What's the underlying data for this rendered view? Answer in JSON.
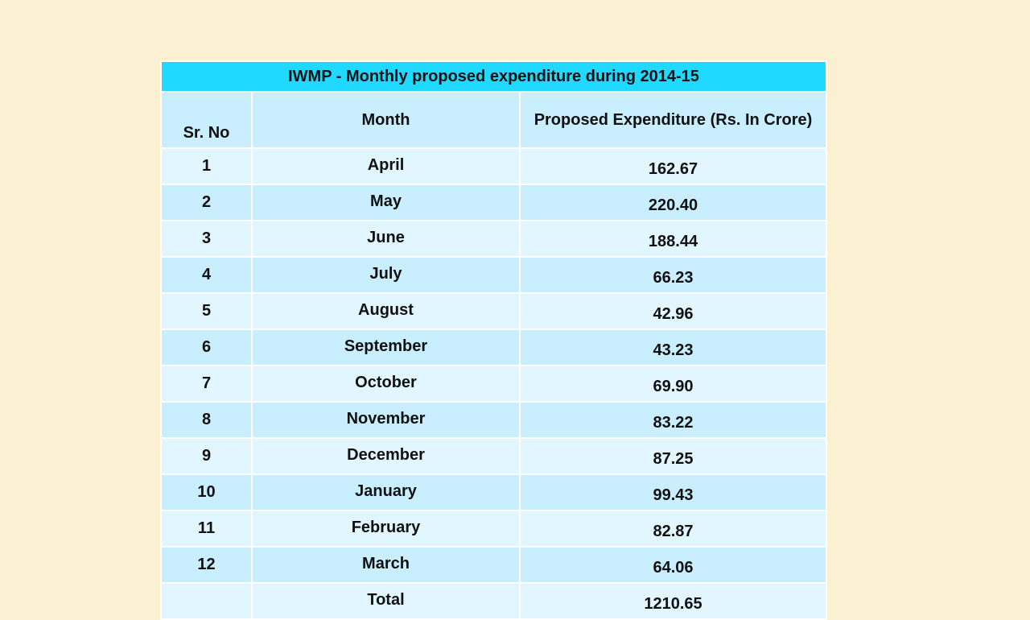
{
  "table": {
    "title": "IWMP - Monthly proposed expenditure during 2014-15",
    "headers": {
      "sr_no": "Sr. No",
      "month": "Month",
      "expenditure": "Proposed Expenditure  (Rs. In Crore)"
    },
    "rows": [
      {
        "sr": "1",
        "month": "April",
        "value": "162.67"
      },
      {
        "sr": "2",
        "month": "May",
        "value": "220.40"
      },
      {
        "sr": "3",
        "month": "June",
        "value": "188.44"
      },
      {
        "sr": "4",
        "month": "July",
        "value": "66.23"
      },
      {
        "sr": "5",
        "month": "August",
        "value": "42.96"
      },
      {
        "sr": "6",
        "month": "September",
        "value": "43.23"
      },
      {
        "sr": "7",
        "month": "October",
        "value": "69.90"
      },
      {
        "sr": "8",
        "month": "November",
        "value": "83.22"
      },
      {
        "sr": "9",
        "month": "December",
        "value": "87.25"
      },
      {
        "sr": "10",
        "month": "January",
        "value": "99.43"
      },
      {
        "sr": "11",
        "month": "February",
        "value": "82.87"
      },
      {
        "sr": "12",
        "month": "March",
        "value": "64.06"
      }
    ],
    "total": {
      "sr": "",
      "label": "Total",
      "value": "1210.65"
    }
  },
  "colors": {
    "background": "#fcf0d3",
    "title_row": "#1fd9ff",
    "row_light": "#e2f6ff",
    "row_dark": "#c9efff"
  }
}
